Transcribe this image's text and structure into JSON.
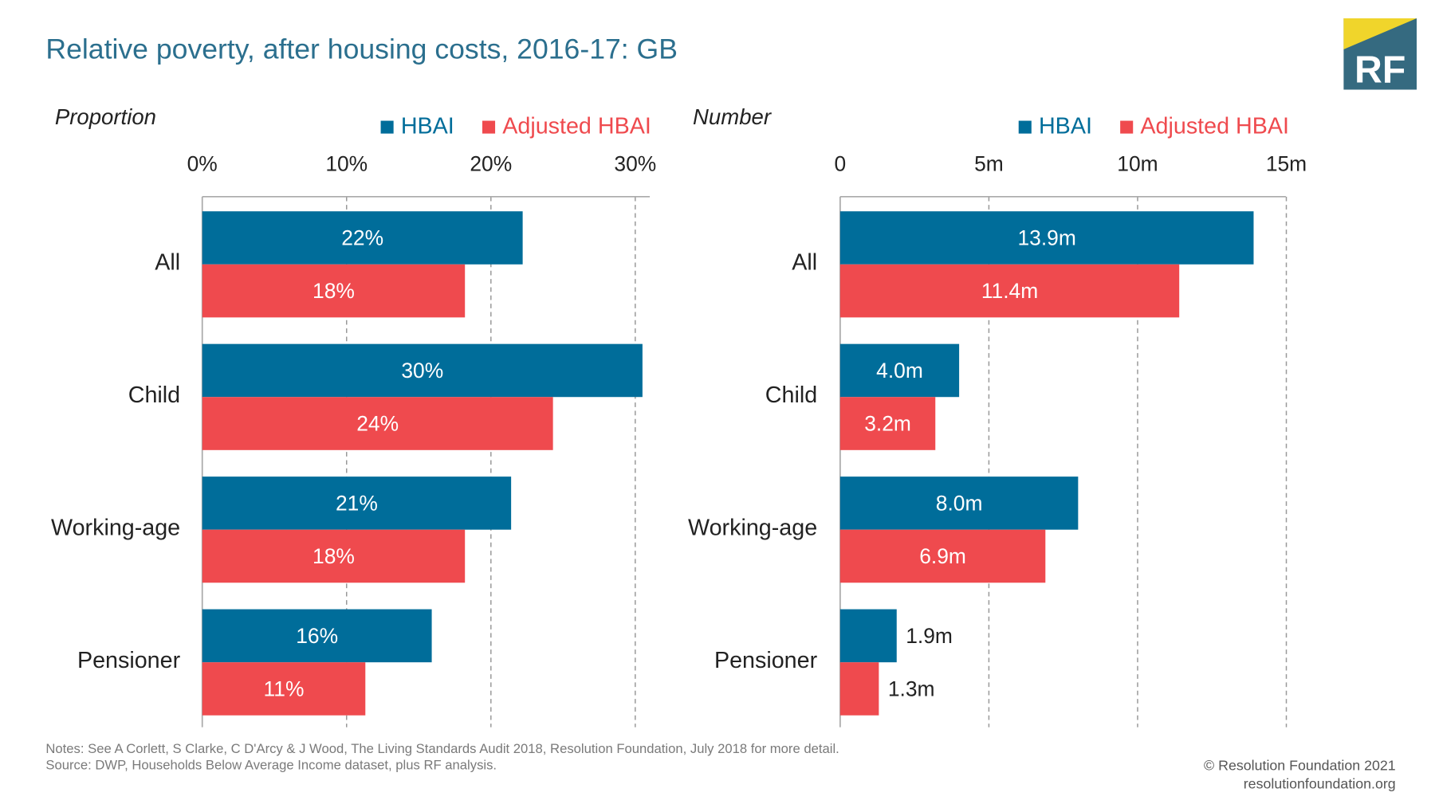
{
  "title": "Relative poverty, after housing costs, 2016-17: GB",
  "logo_text": "RF",
  "notes": "Notes: See A Corlett, S Clarke, C D'Arcy & J Wood, The Living Standards Audit 2018, Resolution Foundation, July 2018 for more detail.",
  "source": "Source: DWP, Households Below Average Income dataset, plus RF analysis.",
  "copyright": "© Resolution Foundation 2021",
  "website": "resolutionfoundation.org",
  "colors": {
    "hbai": "#006d9a",
    "adjusted": "#ef4a4e",
    "title": "#2b6f8e",
    "logo_bg": "#356a80",
    "logo_accent": "#f0d52b"
  },
  "chart_data": [
    {
      "type": "bar",
      "orientation": "horizontal",
      "subtitle": "Proportion",
      "categories": [
        "All",
        "Child",
        "Working-age",
        "Pensioner"
      ],
      "xlim": [
        0,
        31
      ],
      "xticks": [
        0,
        10,
        20,
        30
      ],
      "xtick_labels": [
        "0%",
        "10%",
        "20%",
        "30%"
      ],
      "grid": true,
      "legend": "top-right",
      "series": [
        {
          "name": "HBAI",
          "values": [
            22.2,
            30.5,
            21.4,
            15.9
          ],
          "labels": [
            "22%",
            "30%",
            "21%",
            "16%"
          ]
        },
        {
          "name": "Adjusted HBAI",
          "values": [
            18.2,
            24.3,
            18.2,
            11.3
          ],
          "labels": [
            "18%",
            "24%",
            "18%",
            "11%"
          ]
        }
      ]
    },
    {
      "type": "bar",
      "orientation": "horizontal",
      "subtitle": "Number",
      "categories": [
        "All",
        "Child",
        "Working-age",
        "Pensioner"
      ],
      "xlim": [
        0,
        15
      ],
      "xticks": [
        0,
        5,
        10,
        15
      ],
      "xtick_labels": [
        "0",
        "5m",
        "10m",
        "15m"
      ],
      "grid": true,
      "legend": "top-right",
      "series": [
        {
          "name": "HBAI",
          "values": [
            13.9,
            4.0,
            8.0,
            1.9
          ],
          "labels": [
            "13.9m",
            "4.0m",
            "8.0m",
            "1.9m"
          ]
        },
        {
          "name": "Adjusted HBAI",
          "values": [
            11.4,
            3.2,
            6.9,
            1.3
          ],
          "labels": [
            "11.4m",
            "3.2m",
            "6.9m",
            "1.3m"
          ]
        }
      ]
    }
  ]
}
